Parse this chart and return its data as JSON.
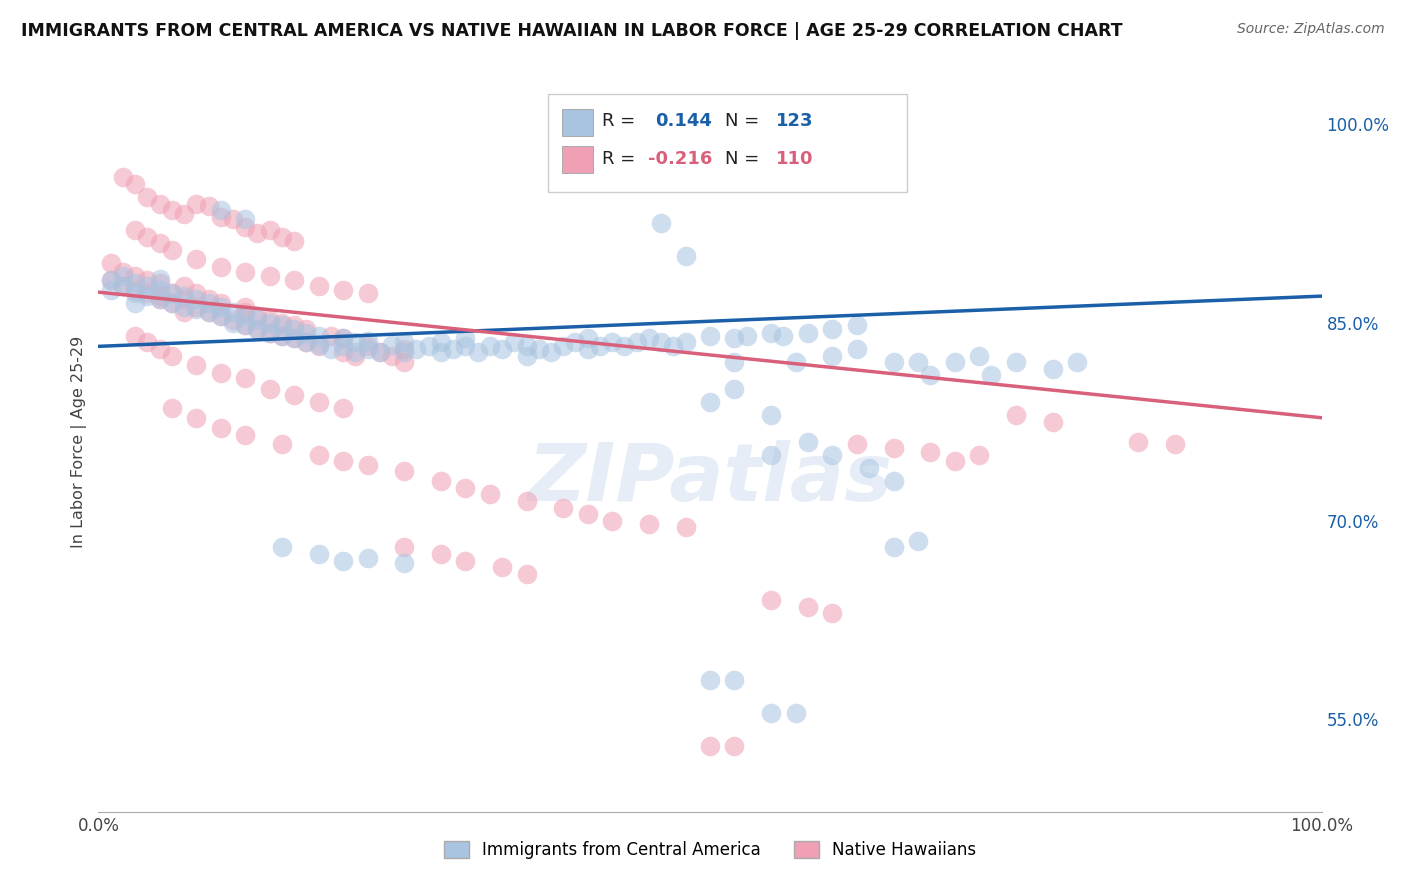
{
  "title": "IMMIGRANTS FROM CENTRAL AMERICA VS NATIVE HAWAIIAN IN LABOR FORCE | AGE 25-29 CORRELATION CHART",
  "source": "Source: ZipAtlas.com",
  "ylabel": "In Labor Force | Age 25-29",
  "right_yticks": [
    55.0,
    70.0,
    85.0,
    100.0
  ],
  "x_min": 0.0,
  "x_max": 1.0,
  "y_min": 0.48,
  "y_max": 1.04,
  "blue_R": 0.144,
  "blue_N": 123,
  "pink_R": -0.216,
  "pink_N": 110,
  "blue_color": "#a8c4e0",
  "pink_color": "#f0a0b4",
  "blue_line_color": "#1a5fa8",
  "pink_line_color": "#d9607a",
  "blue_scatter": [
    [
      0.01,
      0.875
    ],
    [
      0.01,
      0.882
    ],
    [
      0.02,
      0.878
    ],
    [
      0.02,
      0.885
    ],
    [
      0.03,
      0.872
    ],
    [
      0.03,
      0.88
    ],
    [
      0.03,
      0.865
    ],
    [
      0.04,
      0.87
    ],
    [
      0.04,
      0.878
    ],
    [
      0.05,
      0.868
    ],
    [
      0.05,
      0.875
    ],
    [
      0.05,
      0.883
    ],
    [
      0.06,
      0.872
    ],
    [
      0.06,
      0.865
    ],
    [
      0.07,
      0.87
    ],
    [
      0.07,
      0.862
    ],
    [
      0.08,
      0.868
    ],
    [
      0.08,
      0.86
    ],
    [
      0.09,
      0.858
    ],
    [
      0.09,
      0.865
    ],
    [
      0.1,
      0.855
    ],
    [
      0.1,
      0.862
    ],
    [
      0.11,
      0.85
    ],
    [
      0.11,
      0.858
    ],
    [
      0.12,
      0.848
    ],
    [
      0.12,
      0.856
    ],
    [
      0.13,
      0.845
    ],
    [
      0.13,
      0.853
    ],
    [
      0.14,
      0.842
    ],
    [
      0.14,
      0.85
    ],
    [
      0.15,
      0.84
    ],
    [
      0.15,
      0.848
    ],
    [
      0.16,
      0.838
    ],
    [
      0.16,
      0.845
    ],
    [
      0.17,
      0.835
    ],
    [
      0.17,
      0.842
    ],
    [
      0.18,
      0.833
    ],
    [
      0.18,
      0.84
    ],
    [
      0.19,
      0.83
    ],
    [
      0.2,
      0.838
    ],
    [
      0.2,
      0.832
    ],
    [
      0.21,
      0.828
    ],
    [
      0.21,
      0.835
    ],
    [
      0.22,
      0.83
    ],
    [
      0.22,
      0.836
    ],
    [
      0.23,
      0.828
    ],
    [
      0.24,
      0.833
    ],
    [
      0.25,
      0.835
    ],
    [
      0.25,
      0.828
    ],
    [
      0.26,
      0.83
    ],
    [
      0.27,
      0.832
    ],
    [
      0.28,
      0.835
    ],
    [
      0.28,
      0.828
    ],
    [
      0.29,
      0.83
    ],
    [
      0.3,
      0.832
    ],
    [
      0.3,
      0.838
    ],
    [
      0.31,
      0.828
    ],
    [
      0.32,
      0.832
    ],
    [
      0.33,
      0.83
    ],
    [
      0.34,
      0.835
    ],
    [
      0.35,
      0.832
    ],
    [
      0.35,
      0.825
    ],
    [
      0.36,
      0.83
    ],
    [
      0.37,
      0.828
    ],
    [
      0.38,
      0.832
    ],
    [
      0.39,
      0.835
    ],
    [
      0.4,
      0.83
    ],
    [
      0.4,
      0.838
    ],
    [
      0.41,
      0.832
    ],
    [
      0.42,
      0.835
    ],
    [
      0.43,
      0.832
    ],
    [
      0.44,
      0.835
    ],
    [
      0.45,
      0.838
    ],
    [
      0.46,
      0.835
    ],
    [
      0.47,
      0.832
    ],
    [
      0.48,
      0.835
    ],
    [
      0.5,
      0.84
    ],
    [
      0.52,
      0.838
    ],
    [
      0.53,
      0.84
    ],
    [
      0.55,
      0.842
    ],
    [
      0.56,
      0.84
    ],
    [
      0.58,
      0.842
    ],
    [
      0.6,
      0.845
    ],
    [
      0.62,
      0.848
    ],
    [
      0.5,
      0.79
    ],
    [
      0.52,
      0.8
    ],
    [
      0.55,
      0.78
    ],
    [
      0.57,
      0.82
    ],
    [
      0.6,
      0.825
    ],
    [
      0.62,
      0.83
    ],
    [
      0.65,
      0.82
    ],
    [
      0.67,
      0.82
    ],
    [
      0.68,
      0.81
    ],
    [
      0.7,
      0.82
    ],
    [
      0.72,
      0.825
    ],
    [
      0.73,
      0.81
    ],
    [
      0.75,
      0.82
    ],
    [
      0.78,
      0.815
    ],
    [
      0.8,
      0.82
    ],
    [
      0.46,
      0.925
    ],
    [
      0.48,
      0.9
    ],
    [
      0.52,
      0.82
    ],
    [
      0.55,
      0.75
    ],
    [
      0.58,
      0.76
    ],
    [
      0.6,
      0.75
    ],
    [
      0.63,
      0.74
    ],
    [
      0.65,
      0.73
    ],
    [
      0.5,
      0.58
    ],
    [
      0.52,
      0.58
    ],
    [
      0.55,
      0.555
    ],
    [
      0.57,
      0.555
    ],
    [
      0.65,
      0.68
    ],
    [
      0.67,
      0.685
    ],
    [
      0.1,
      0.935
    ],
    [
      0.12,
      0.928
    ],
    [
      0.15,
      0.68
    ],
    [
      0.18,
      0.675
    ],
    [
      0.2,
      0.67
    ],
    [
      0.22,
      0.672
    ],
    [
      0.25,
      0.668
    ]
  ],
  "pink_scatter": [
    [
      0.01,
      0.882
    ],
    [
      0.01,
      0.895
    ],
    [
      0.02,
      0.878
    ],
    [
      0.02,
      0.888
    ],
    [
      0.03,
      0.875
    ],
    [
      0.03,
      0.885
    ],
    [
      0.04,
      0.872
    ],
    [
      0.04,
      0.882
    ],
    [
      0.05,
      0.87
    ],
    [
      0.05,
      0.88
    ],
    [
      0.05,
      0.868
    ],
    [
      0.06,
      0.872
    ],
    [
      0.06,
      0.865
    ],
    [
      0.07,
      0.868
    ],
    [
      0.07,
      0.878
    ],
    [
      0.07,
      0.858
    ],
    [
      0.08,
      0.862
    ],
    [
      0.08,
      0.872
    ],
    [
      0.09,
      0.858
    ],
    [
      0.09,
      0.868
    ],
    [
      0.1,
      0.855
    ],
    [
      0.1,
      0.865
    ],
    [
      0.11,
      0.852
    ],
    [
      0.12,
      0.848
    ],
    [
      0.12,
      0.858
    ],
    [
      0.12,
      0.862
    ],
    [
      0.13,
      0.845
    ],
    [
      0.13,
      0.855
    ],
    [
      0.14,
      0.842
    ],
    [
      0.14,
      0.852
    ],
    [
      0.15,
      0.84
    ],
    [
      0.15,
      0.85
    ],
    [
      0.16,
      0.838
    ],
    [
      0.16,
      0.848
    ],
    [
      0.17,
      0.835
    ],
    [
      0.17,
      0.845
    ],
    [
      0.18,
      0.832
    ],
    [
      0.19,
      0.84
    ],
    [
      0.2,
      0.828
    ],
    [
      0.2,
      0.838
    ],
    [
      0.21,
      0.825
    ],
    [
      0.22,
      0.832
    ],
    [
      0.23,
      0.828
    ],
    [
      0.24,
      0.825
    ],
    [
      0.25,
      0.83
    ],
    [
      0.25,
      0.82
    ],
    [
      0.02,
      0.96
    ],
    [
      0.03,
      0.955
    ],
    [
      0.04,
      0.945
    ],
    [
      0.05,
      0.94
    ],
    [
      0.06,
      0.935
    ],
    [
      0.07,
      0.932
    ],
    [
      0.08,
      0.94
    ],
    [
      0.09,
      0.938
    ],
    [
      0.1,
      0.93
    ],
    [
      0.11,
      0.928
    ],
    [
      0.12,
      0.922
    ],
    [
      0.13,
      0.918
    ],
    [
      0.14,
      0.92
    ],
    [
      0.15,
      0.915
    ],
    [
      0.16,
      0.912
    ],
    [
      0.03,
      0.92
    ],
    [
      0.04,
      0.915
    ],
    [
      0.05,
      0.91
    ],
    [
      0.06,
      0.905
    ],
    [
      0.08,
      0.898
    ],
    [
      0.1,
      0.892
    ],
    [
      0.12,
      0.888
    ],
    [
      0.14,
      0.885
    ],
    [
      0.16,
      0.882
    ],
    [
      0.18,
      0.878
    ],
    [
      0.2,
      0.875
    ],
    [
      0.22,
      0.872
    ],
    [
      0.03,
      0.84
    ],
    [
      0.04,
      0.835
    ],
    [
      0.05,
      0.83
    ],
    [
      0.06,
      0.825
    ],
    [
      0.08,
      0.818
    ],
    [
      0.1,
      0.812
    ],
    [
      0.12,
      0.808
    ],
    [
      0.14,
      0.8
    ],
    [
      0.16,
      0.795
    ],
    [
      0.18,
      0.79
    ],
    [
      0.2,
      0.785
    ],
    [
      0.06,
      0.785
    ],
    [
      0.08,
      0.778
    ],
    [
      0.1,
      0.77
    ],
    [
      0.12,
      0.765
    ],
    [
      0.15,
      0.758
    ],
    [
      0.18,
      0.75
    ],
    [
      0.2,
      0.745
    ],
    [
      0.22,
      0.742
    ],
    [
      0.25,
      0.738
    ],
    [
      0.28,
      0.73
    ],
    [
      0.3,
      0.725
    ],
    [
      0.32,
      0.72
    ],
    [
      0.35,
      0.715
    ],
    [
      0.38,
      0.71
    ],
    [
      0.4,
      0.705
    ],
    [
      0.42,
      0.7
    ],
    [
      0.45,
      0.698
    ],
    [
      0.48,
      0.695
    ],
    [
      0.25,
      0.68
    ],
    [
      0.28,
      0.675
    ],
    [
      0.3,
      0.67
    ],
    [
      0.33,
      0.665
    ],
    [
      0.35,
      0.66
    ],
    [
      0.5,
      0.53
    ],
    [
      0.52,
      0.53
    ],
    [
      0.55,
      0.64
    ],
    [
      0.58,
      0.635
    ],
    [
      0.6,
      0.63
    ],
    [
      0.62,
      0.758
    ],
    [
      0.65,
      0.755
    ],
    [
      0.68,
      0.752
    ],
    [
      0.7,
      0.745
    ],
    [
      0.72,
      0.75
    ],
    [
      0.75,
      0.78
    ],
    [
      0.78,
      0.775
    ],
    [
      0.85,
      0.76
    ],
    [
      0.88,
      0.758
    ]
  ],
  "watermark": "ZIPatlas",
  "grid_color": "#d8dde8",
  "background_color": "#ffffff"
}
